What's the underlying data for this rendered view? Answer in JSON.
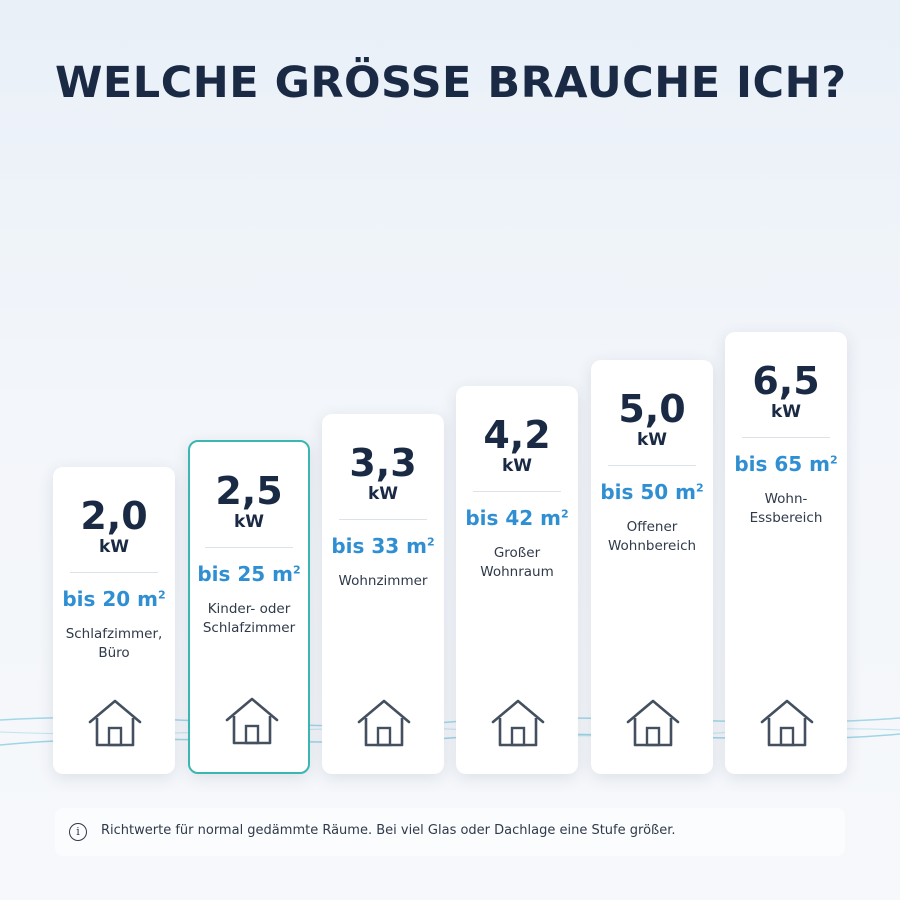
{
  "title": "WELCHE GRÖSSE BRAUCHE ICH?",
  "cards": [
    {
      "kw": "2,0",
      "unit": "kW",
      "area": "bis 20 m",
      "sup": "2",
      "room_lines": [
        "Schlafzimmer,",
        "Büro"
      ],
      "selected": false
    },
    {
      "kw": "2,5",
      "unit": "kW",
      "area": "bis 25 m",
      "sup": "2",
      "room_lines": [
        "Kinder- oder",
        "Schlafzimmer"
      ],
      "selected": true
    },
    {
      "kw": "3,3",
      "unit": "kW",
      "area": "bis 33 m",
      "sup": "2",
      "room_lines": [
        "Wohnzimmer"
      ],
      "selected": false
    },
    {
      "kw": "4,2",
      "unit": "kW",
      "area": "bis 42 m",
      "sup": "2",
      "room_lines": [
        "Großer",
        "Wohnraum"
      ],
      "selected": false
    },
    {
      "kw": "5,0",
      "unit": "kW",
      "area": "bis 50 m",
      "sup": "2",
      "room_lines": [
        "Offener",
        "Wohnbereich"
      ],
      "selected": false
    },
    {
      "kw": "6,5",
      "unit": "kW",
      "area": "bis 65 m",
      "sup": "2",
      "room_lines": [
        "Wohn-Essbereich"
      ],
      "selected": false
    }
  ],
  "note": {
    "icon": "info-icon",
    "icon_glyph": "i",
    "text": "Richtwerte für normal gedämmte Räume. Bei viel Glas oder Dachlage eine Stufe größer."
  },
  "colors": {
    "accent": "#2f8fd2",
    "selected_border": "#3ab7b0",
    "text_dark": "#1b2a44"
  }
}
